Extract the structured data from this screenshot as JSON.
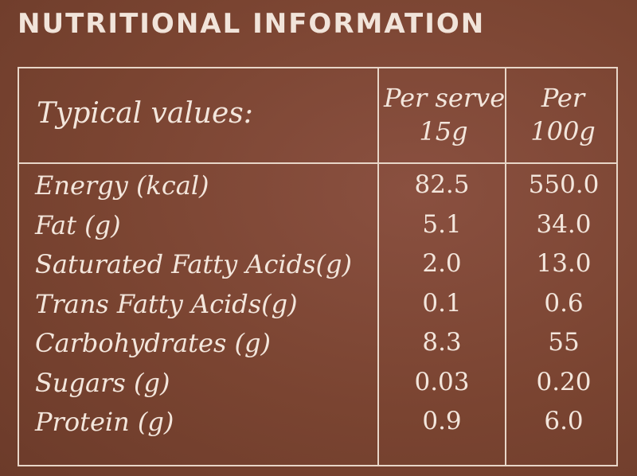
{
  "heading": "NUTRITIONAL INFORMATION",
  "header": {
    "typical": "Typical values:",
    "per_serve_line1": "Per serve",
    "per_serve_line2": "15g",
    "per_100_line1": "Per",
    "per_100_line2": "100g"
  },
  "rows": [
    {
      "label": "Energy (kcal)",
      "per_serve": "82.5",
      "per_100g": "550.0"
    },
    {
      "label": "Fat (g)",
      "per_serve": "5.1",
      "per_100g": "34.0"
    },
    {
      "label": "Saturated Fatty Acids(g)",
      "per_serve": "2.0",
      "per_100g": "13.0"
    },
    {
      "label": "Trans Fatty Acids(g)",
      "per_serve": "0.1",
      "per_100g": "0.6"
    },
    {
      "label": "Carbohydrates (g)",
      "per_serve": "8.3",
      "per_100g": "55"
    },
    {
      "label": "Sugars (g)",
      "per_serve": "0.03",
      "per_100g": "0.20"
    },
    {
      "label": "Protein (g)",
      "per_serve": "0.9",
      "per_100g": "6.0"
    }
  ],
  "colors": {
    "background": "#7a4431",
    "text": "#f3e6dc",
    "rule": "#e8d6c8"
  }
}
